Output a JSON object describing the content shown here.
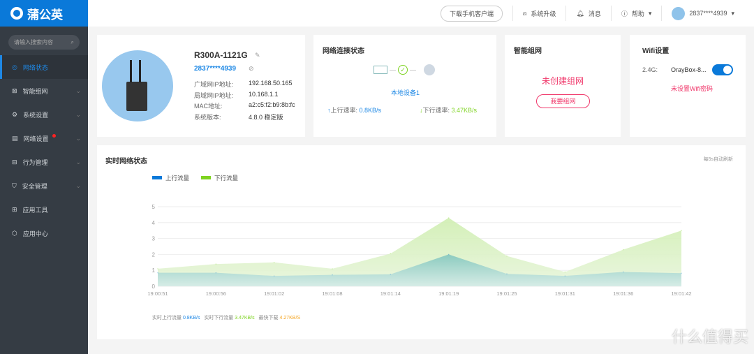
{
  "app": {
    "name": "蒲公英"
  },
  "sidebar": {
    "search_placeholder": "请输入搜索内容",
    "items": [
      {
        "label": "网络状态",
        "icon": "globe-icon",
        "active": true
      },
      {
        "label": "智能组网",
        "icon": "network-icon"
      },
      {
        "label": "系统设置",
        "icon": "gear-icon"
      },
      {
        "label": "网络设置",
        "icon": "settings-icon",
        "badge": true
      },
      {
        "label": "行为管理",
        "icon": "behavior-icon"
      },
      {
        "label": "安全管理",
        "icon": "shield-icon"
      },
      {
        "label": "应用工具",
        "icon": "toolbox-icon"
      },
      {
        "label": "应用中心",
        "icon": "cube-icon"
      }
    ]
  },
  "topbar": {
    "download": "下载手机客户端",
    "upgrade": "系统升级",
    "messages": "消息",
    "help": "帮助",
    "user": "2837****4939"
  },
  "device": {
    "name": "R300A-1121G",
    "id": "2837****4939",
    "rows": [
      {
        "k": "广域网IP地址:",
        "v": "192.168.50.165"
      },
      {
        "k": "局域网IP地址:",
        "v": "10.168.1.1"
      },
      {
        "k": "MAC地址:",
        "v": "a2:c5:f2:b9:8b:fc"
      },
      {
        "k": "系统版本:",
        "v": "4.8.0 稳定版"
      }
    ]
  },
  "net": {
    "title": "网络连接状态",
    "device": "本地设备1",
    "up_label": "上行速率:",
    "up": "0.8KB/s",
    "down_label": "下行速率:",
    "down": "3.47KB/s"
  },
  "mesh": {
    "title": "智能组网",
    "status": "未创建组网",
    "button": "我要组网"
  },
  "wifi": {
    "title": "Wifi设置",
    "band": "2.4G:",
    "ssid": "OrayBox-8...",
    "enabled": true,
    "warning": "未设置Wifi密码"
  },
  "realtime": {
    "title": "实时网络状态",
    "refresh": "每5s自动刷新",
    "footer": {
      "up_label": "实时上行流量",
      "up": "0.8KB/s",
      "down_label": "实时下行流量",
      "down": "3.47KB/s",
      "max_label": "最快下载",
      "max": "4.27KB/S"
    }
  },
  "colors": {
    "accent": "#1e88e5",
    "up": "#0a79d9",
    "down": "#7ed321",
    "warn": "#f0386b",
    "max": "#f5a623"
  },
  "watermark": "什么值得买",
  "chart_data": {
    "type": "area",
    "x": [
      "19:00:51",
      "19:00:56",
      "19:01:02",
      "19:01:08",
      "19:01:14",
      "19:01:19",
      "19:01:25",
      "19:01:31",
      "19:01:36",
      "19:01:42"
    ],
    "yticks": [
      0,
      1,
      2,
      3,
      4,
      5
    ],
    "ylim": [
      0,
      5
    ],
    "legend": "top-left",
    "grid": true,
    "series": [
      {
        "name": "上行流量",
        "color": "#0a79d9",
        "values": [
          0.85,
          0.85,
          0.65,
          0.72,
          0.75,
          2.0,
          0.78,
          0.65,
          0.9,
          0.82
        ]
      },
      {
        "name": "下行流量",
        "color": "#7ed321",
        "values": [
          1.1,
          1.4,
          1.5,
          1.1,
          2.05,
          4.3,
          1.9,
          0.9,
          2.3,
          3.5
        ]
      }
    ]
  }
}
